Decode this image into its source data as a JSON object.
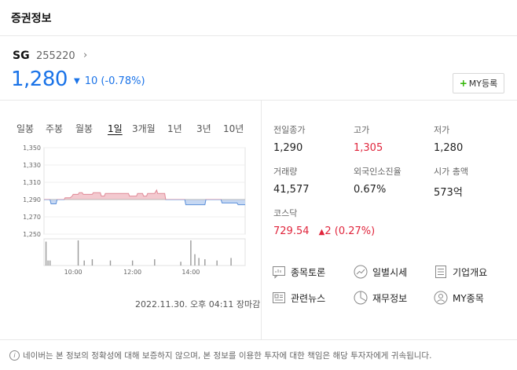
{
  "header": {
    "title": "증권정보"
  },
  "stock": {
    "name": "SG",
    "code": "255220",
    "code_arrow": "›",
    "price": "1,280",
    "change_icon": "▼",
    "change": "10 (-0.78%)",
    "color": "#1a73e8"
  },
  "my_button": {
    "plus": "+",
    "label": "MY등록"
  },
  "period_tabs": [
    "일봉",
    "주봉",
    "월봉",
    "1일",
    "3개월",
    "1년",
    "3년",
    "10년"
  ],
  "active_period": "1일",
  "chart_data": {
    "type": "line",
    "title": "",
    "xlabel": "",
    "ylabel": "",
    "ylim": [
      1250,
      1350
    ],
    "y_ticks": [
      "1,350",
      "1,330",
      "1,310",
      "1,290",
      "1,270",
      "1,250"
    ],
    "x_ticks": [
      "10:00",
      "12:00",
      "14:00"
    ],
    "baseline": 1290,
    "up_color": "#f3c9cf",
    "down_color": "#c6d8f3",
    "series": [
      {
        "x": [
          0,
          3,
          3.5,
          6,
          6.5,
          10,
          10.5,
          13,
          14,
          14.5,
          17,
          17.5,
          19,
          19.5,
          24,
          24.5,
          28,
          28.5,
          30,
          30.5,
          42,
          42.5,
          46,
          46.5,
          49,
          49.5,
          51,
          51.5,
          55,
          56,
          56.5,
          60,
          60.5,
          70,
          70.5,
          80,
          80.5,
          88,
          88.5,
          96,
          96.5,
          100
        ],
        "y": [
          1290,
          1290,
          1285,
          1285,
          1290,
          1290,
          1292,
          1292,
          1294,
          1296,
          1296,
          1298,
          1298,
          1296,
          1296,
          1298,
          1298,
          1294,
          1294,
          1297,
          1297,
          1294,
          1294,
          1297,
          1297,
          1294,
          1294,
          1297,
          1297,
          1301,
          1297,
          1297,
          1290,
          1290,
          1284,
          1284,
          1290,
          1290,
          1286,
          1286,
          1284,
          1284
        ]
      }
    ],
    "volume": [
      {
        "x": 1,
        "v": 0.95
      },
      {
        "x": 2,
        "v": 0.2
      },
      {
        "x": 3,
        "v": 0.2
      },
      {
        "x": 17,
        "v": 1.0
      },
      {
        "x": 20,
        "v": 0.2
      },
      {
        "x": 24,
        "v": 0.25
      },
      {
        "x": 33,
        "v": 0.2
      },
      {
        "x": 44,
        "v": 0.2
      },
      {
        "x": 55,
        "v": 0.25
      },
      {
        "x": 68,
        "v": 0.15
      },
      {
        "x": 73,
        "v": 1.0
      },
      {
        "x": 75,
        "v": 0.45
      },
      {
        "x": 77,
        "v": 0.3
      },
      {
        "x": 80,
        "v": 0.25
      },
      {
        "x": 86,
        "v": 0.2
      },
      {
        "x": 93,
        "v": 0.3
      }
    ]
  },
  "timestamp": "2022.11.30. 오후 04:11 장마감",
  "stats": [
    {
      "label": "전일종가",
      "value": "1,290",
      "up": false
    },
    {
      "label": "고가",
      "value": "1,305",
      "up": true
    },
    {
      "label": "저가",
      "value": "1,280",
      "up": false
    },
    {
      "label": "거래량",
      "value": "41,577",
      "up": false
    },
    {
      "label": "외국인소진율",
      "value": "0.67%",
      "up": false
    },
    {
      "label": "시가 총액",
      "value": "573억",
      "up": false
    },
    {
      "label": "코스닥",
      "value": "729.54",
      "up": true
    }
  ],
  "kosdaq_change": {
    "icon": "▲",
    "value": "2 (0.27%)"
  },
  "links": [
    {
      "label": "종목토론",
      "icon": "chat-icon"
    },
    {
      "label": "일별시세",
      "icon": "trend-icon"
    },
    {
      "label": "기업개요",
      "icon": "list-icon"
    },
    {
      "label": "관련뉴스",
      "icon": "news-icon"
    },
    {
      "label": "재무정보",
      "icon": "pie-icon"
    },
    {
      "label": "MY종목",
      "icon": "person-icon"
    }
  ],
  "disclaimer": {
    "icon": "i",
    "text": "네이버는 본 정보의 정확성에 대해 보증하지 않으며, 본 정보를 이용한 투자에 대한 책임은 해당 투자자에게 귀속됩니다."
  }
}
